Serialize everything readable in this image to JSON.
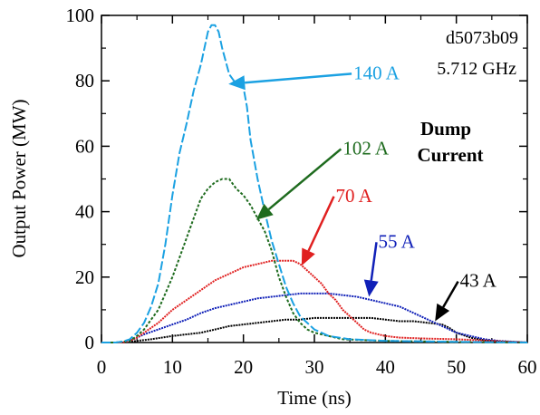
{
  "chart_data": {
    "type": "line",
    "title": "",
    "xlabel": "Time (ns)",
    "ylabel": "Output Power (MW)",
    "xlim": [
      0,
      60
    ],
    "ylim": [
      0,
      100
    ],
    "xticks": [
      0,
      10,
      20,
      30,
      40,
      50,
      60
    ],
    "yticks": [
      0,
      20,
      40,
      60,
      80,
      100
    ],
    "xtick_labels": [
      "0",
      "10",
      "20",
      "30",
      "40",
      "50",
      "60"
    ],
    "ytick_labels": [
      "0",
      "20",
      "40",
      "60",
      "80",
      "100"
    ],
    "grid": false,
    "annotations": {
      "id": "d5073b09",
      "frequency": "5.712 GHz",
      "legend_title_line1": "Dump",
      "legend_title_line2": "Current"
    },
    "series": [
      {
        "name": "140 A",
        "color": "#1ba1e2",
        "dash": "10,3",
        "x": [
          0,
          2,
          3,
          4,
          5,
          6,
          7,
          8,
          9,
          10,
          11,
          12,
          13,
          14,
          15,
          15.5,
          16,
          16.5,
          17,
          18,
          19,
          20,
          20.5,
          21,
          22,
          23,
          24,
          25,
          26,
          27,
          28,
          30,
          32,
          35,
          40,
          50,
          60
        ],
        "y": [
          0,
          0,
          0.3,
          1,
          3,
          6,
          11,
          18,
          30,
          45,
          58,
          67,
          77,
          85,
          95,
          97,
          97,
          95,
          90,
          82,
          79,
          78,
          72,
          62,
          50,
          40,
          31,
          24,
          17,
          12,
          8,
          4,
          2,
          1,
          0.5,
          0.2,
          0
        ]
      },
      {
        "name": "102 A",
        "color": "#1e6b1e",
        "dash": "3,2",
        "x": [
          0,
          2,
          4,
          5,
          6,
          7,
          8,
          9,
          10,
          11,
          12,
          13,
          14,
          15,
          16,
          17,
          18,
          19,
          20,
          21,
          22,
          23,
          24,
          25,
          26,
          27,
          28,
          29,
          30,
          32,
          34,
          36,
          40,
          50,
          60
        ],
        "y": [
          0,
          0,
          0.5,
          2,
          4,
          7,
          10,
          15,
          20,
          26,
          32,
          38,
          44,
          47,
          49,
          50,
          50,
          47,
          45,
          42,
          38,
          34,
          28,
          20,
          14,
          9,
          6,
          4,
          3,
          2,
          1,
          0.8,
          0.5,
          0.2,
          0
        ]
      },
      {
        "name": "70 A",
        "color": "#e02020",
        "dash": "2,1",
        "x": [
          0,
          3,
          4,
          5,
          6,
          8,
          10,
          12,
          14,
          16,
          18,
          20,
          22,
          24,
          25,
          26,
          27,
          28,
          29,
          30,
          31,
          32,
          33,
          34,
          35,
          36,
          37,
          38,
          40,
          42,
          46,
          50,
          55,
          60
        ],
        "y": [
          0,
          0,
          0.5,
          1.5,
          3,
          6,
          10,
          13,
          16,
          19,
          21,
          23,
          24,
          25,
          25,
          25,
          25,
          24,
          22,
          20,
          18,
          15,
          13,
          10,
          8,
          6,
          4,
          3,
          2,
          1.5,
          1.2,
          1,
          0.5,
          0
        ]
      },
      {
        "name": "55 A",
        "color": "#1020b8",
        "dash": "2,1",
        "x": [
          0,
          3,
          4,
          5,
          6,
          8,
          10,
          12,
          14,
          16,
          18,
          20,
          22,
          24,
          26,
          28,
          30,
          32,
          34,
          36,
          38,
          40,
          42,
          44,
          46,
          48,
          50,
          52,
          54,
          56,
          60
        ],
        "y": [
          0,
          0,
          0.5,
          1.5,
          2.5,
          4,
          5.5,
          7,
          9,
          10.5,
          11.5,
          12.5,
          13.5,
          14,
          14.5,
          15,
          15,
          15,
          14.5,
          14,
          13,
          12,
          11,
          9,
          7,
          5,
          3,
          2,
          1,
          0.5,
          0
        ]
      },
      {
        "name": "43 A",
        "color": "#000000",
        "dash": "2,1",
        "x": [
          0,
          3,
          5,
          7,
          10,
          12,
          14,
          16,
          18,
          20,
          22,
          24,
          26,
          28,
          30,
          32,
          34,
          36,
          38,
          40,
          42,
          44,
          46,
          48,
          49,
          50,
          52,
          54,
          56,
          60
        ],
        "y": [
          0,
          0,
          0.5,
          1,
          2,
          2.5,
          3,
          4,
          5,
          5.5,
          6,
          6.5,
          7,
          7,
          7.5,
          7.5,
          7.5,
          7.5,
          7.5,
          7,
          6.5,
          6.5,
          6,
          5.5,
          4.5,
          3,
          1.5,
          0.7,
          0.3,
          0
        ]
      }
    ],
    "labels": [
      {
        "text": "140 A",
        "color": "#1ba1e2",
        "x": 35.5,
        "y": 80.5,
        "arrow_to": [
          17.9,
          79
        ]
      },
      {
        "text": "102 A",
        "color": "#1e6b1e",
        "x": 34,
        "y": 57.5,
        "arrow_to": [
          21.8,
          37.5
        ]
      },
      {
        "text": "70 A",
        "color": "#e02020",
        "x": 33,
        "y": 43,
        "arrow_to": [
          28.2,
          23.5
        ]
      },
      {
        "text": "55 A",
        "color": "#1020b8",
        "x": 39,
        "y": 29,
        "arrow_to": [
          37.7,
          14
        ]
      },
      {
        "text": "43 A",
        "color": "#000000",
        "x": 50.5,
        "y": 17,
        "arrow_to": [
          47,
          6.5
        ]
      }
    ]
  }
}
